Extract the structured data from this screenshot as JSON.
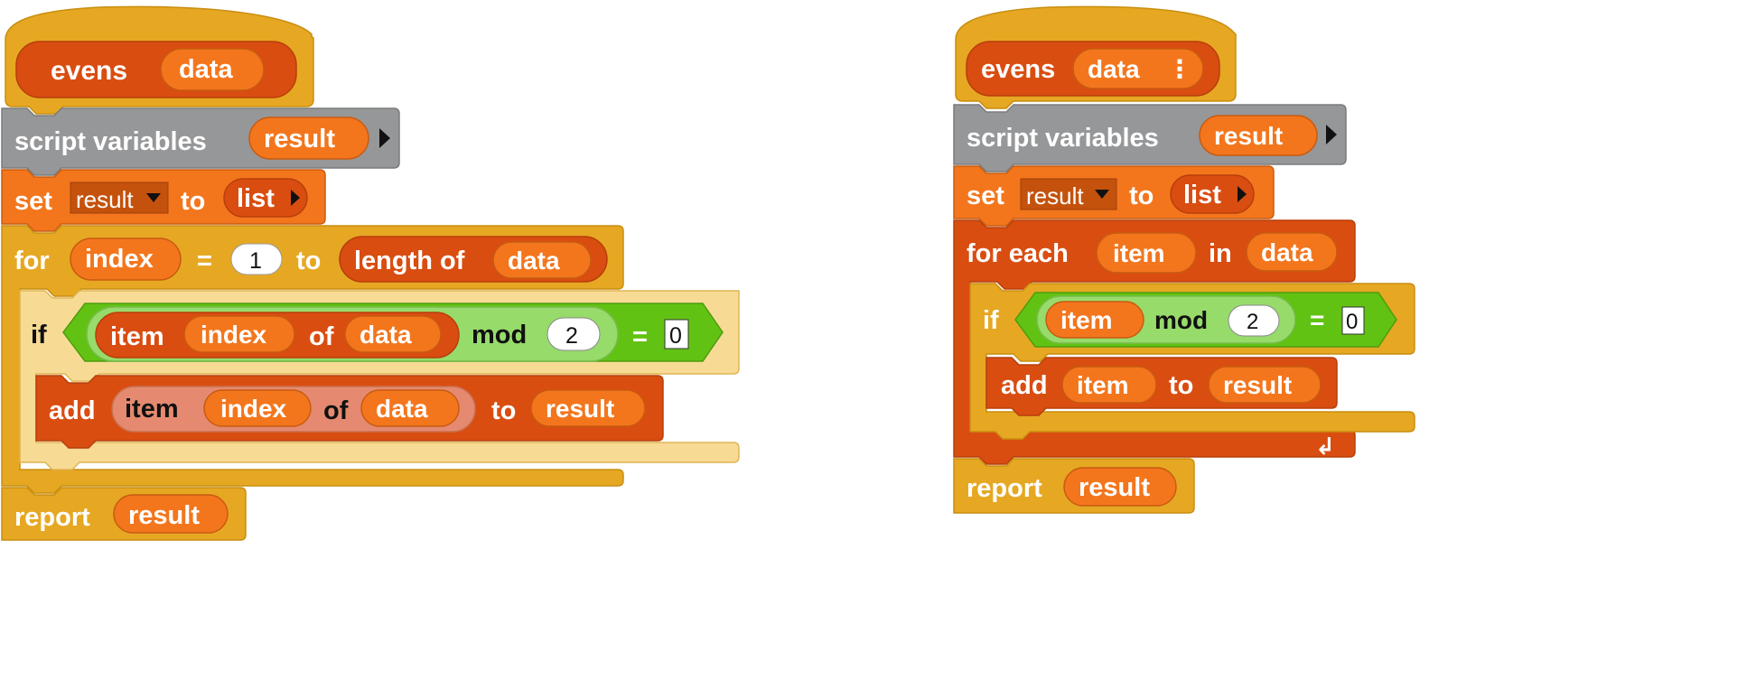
{
  "scripts": {
    "left": {
      "hat": {
        "label": "evens",
        "param": "data"
      },
      "script_variables": {
        "label": "script variables",
        "var": "result"
      },
      "set": {
        "label": "set",
        "var": "result",
        "to": "to",
        "value": "list"
      },
      "for": {
        "label": "for",
        "var": "index",
        "equals": "=",
        "start": "1",
        "to": "to",
        "end_label": "length of",
        "end_arg": "data"
      },
      "if": {
        "label": "if",
        "item_label": "item",
        "item_index": "index",
        "of": "of",
        "list": "data",
        "mod": "mod",
        "divisor": "2",
        "equals": "=",
        "compare": "0"
      },
      "add": {
        "label": "add",
        "item_label": "item",
        "item_index": "index",
        "of": "of",
        "list": "data",
        "to": "to",
        "target": "result"
      },
      "report": {
        "label": "report",
        "value": "result"
      }
    },
    "right": {
      "hat": {
        "label": "evens",
        "param": "data",
        "dots": "⋮"
      },
      "script_variables": {
        "label": "script variables",
        "var": "result"
      },
      "set": {
        "label": "set",
        "var": "result",
        "to": "to",
        "value": "list"
      },
      "for_each": {
        "label": "for each",
        "var": "item",
        "in": "in",
        "list": "data",
        "loop_arrow": "↲"
      },
      "if": {
        "label": "if",
        "item": "item",
        "mod": "mod",
        "divisor": "2",
        "equals": "=",
        "compare": "0"
      },
      "add": {
        "label": "add",
        "item": "item",
        "to": "to",
        "target": "result"
      },
      "report": {
        "label": "report",
        "value": "result"
      }
    }
  },
  "colors": {
    "control": "#E6A822",
    "control_light": "#F3CE7A",
    "control_zebra": "#F7DB95",
    "variables": "#F3761D",
    "variables_dark": "#D94D11",
    "lists": "#D94D11",
    "lists_light": "#E58A70",
    "operators": "#62C213",
    "operators_light": "#97DB6B",
    "other": "#969799",
    "text": "#FFFFFF",
    "text_dark": "#111111"
  }
}
